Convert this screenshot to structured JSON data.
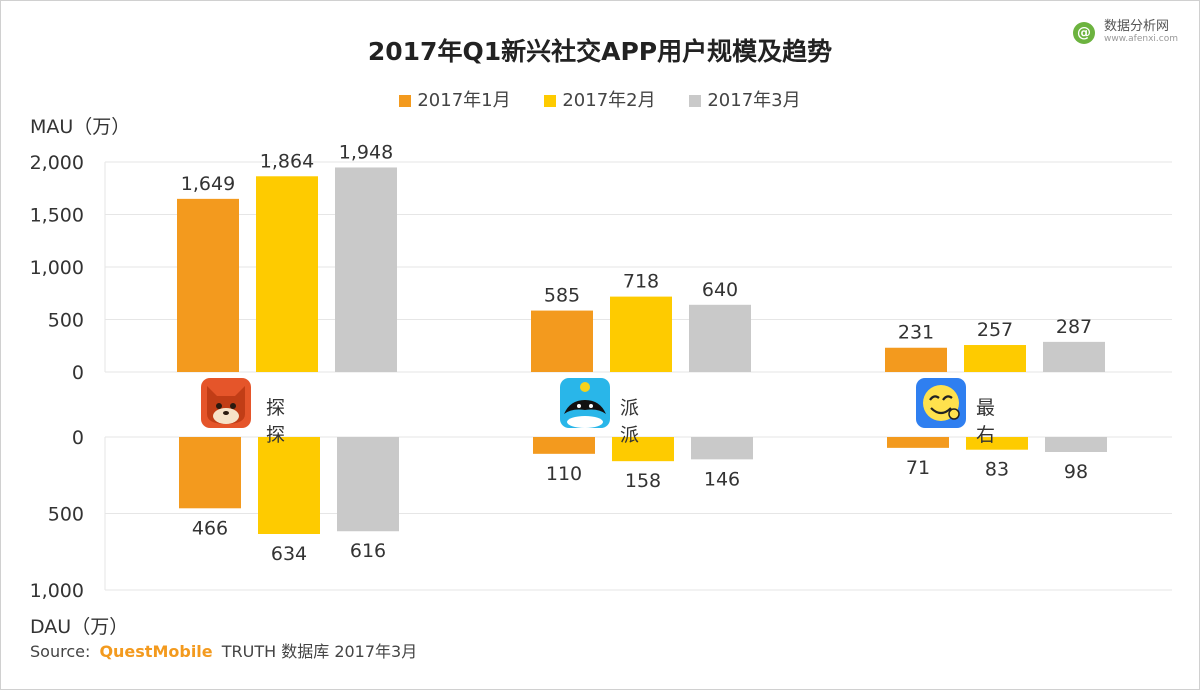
{
  "watermark": {
    "logo_letter": "@",
    "name": "数据分析网",
    "url": "www.afenxi.com"
  },
  "mau_axis_label": "MAU（万）",
  "dau_axis_label": "DAU（万）",
  "source": {
    "prefix": "Source:",
    "brand": "QuestMobile",
    "rest": "TRUTH 数据库 2017年3月"
  },
  "colors": {
    "jan": "#f39a1e",
    "feb": "#fecb00",
    "mar": "#c9c9c9"
  },
  "apps": [
    {
      "name": "探探",
      "icon": "fox-icon"
    },
    {
      "name": "派派",
      "icon": "orca-icon"
    },
    {
      "name": "最右",
      "icon": "face-icon"
    }
  ],
  "chart_data": {
    "type": "bar",
    "title": "2017年Q1新兴社交APP用户规模及趋势",
    "categories": [
      "探探",
      "派派",
      "最右"
    ],
    "legend_position": "top-center",
    "grid": true,
    "mau": {
      "ylabel": "MAU（万）",
      "ylim": [
        0,
        2000
      ],
      "ticks": [
        "0",
        "500",
        "1,000",
        "1,500",
        "2,000"
      ],
      "series": [
        {
          "name": "2017年1月",
          "values": [
            1649,
            585,
            231
          ],
          "labels": [
            "1,649",
            "585",
            "231"
          ]
        },
        {
          "name": "2017年2月",
          "values": [
            1864,
            718,
            257
          ],
          "labels": [
            "1,864",
            "718",
            "257"
          ]
        },
        {
          "name": "2017年3月",
          "values": [
            1948,
            640,
            287
          ],
          "labels": [
            "1,948",
            "640",
            "287"
          ]
        }
      ]
    },
    "dau": {
      "ylabel": "DAU（万）",
      "ylim": [
        0,
        1000
      ],
      "inverted": true,
      "ticks": [
        "0",
        "500",
        "1,000"
      ],
      "series": [
        {
          "name": "2017年1月",
          "values": [
            466,
            110,
            71
          ],
          "labels": [
            "466",
            "110",
            "71"
          ]
        },
        {
          "name": "2017年2月",
          "values": [
            634,
            158,
            83
          ],
          "labels": [
            "634",
            "158",
            "83"
          ]
        },
        {
          "name": "2017年3月",
          "values": [
            616,
            146,
            98
          ],
          "labels": [
            "616",
            "146",
            "98"
          ]
        }
      ]
    }
  }
}
